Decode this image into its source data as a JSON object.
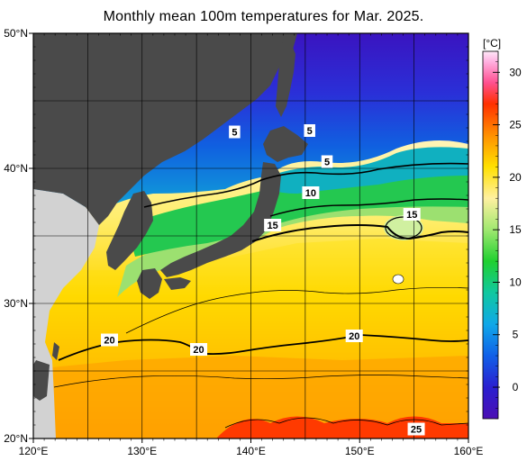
{
  "title": "Monthly mean 100m temperatures for Mar. 2025.",
  "colorbar": {
    "unit": "[°C]",
    "ticks": [
      "30",
      "25",
      "20",
      "15",
      "10",
      "5",
      "0"
    ],
    "tick_values": [
      30,
      25,
      20,
      15,
      10,
      5,
      0
    ],
    "range": [
      -3,
      32
    ],
    "stops": [
      {
        "v": -3,
        "c": "#4b0fb4"
      },
      {
        "v": 0,
        "c": "#2a1fd0"
      },
      {
        "v": 3,
        "c": "#1060e8"
      },
      {
        "v": 6,
        "c": "#10a8e8"
      },
      {
        "v": 9,
        "c": "#10c8a0"
      },
      {
        "v": 12,
        "c": "#20d030"
      },
      {
        "v": 15,
        "c": "#a0e870"
      },
      {
        "v": 18,
        "c": "#fff0a0"
      },
      {
        "v": 21,
        "c": "#ffe000"
      },
      {
        "v": 24,
        "c": "#ff9000"
      },
      {
        "v": 27,
        "c": "#ff3000"
      },
      {
        "v": 29,
        "c": "#ff5090"
      },
      {
        "v": 31,
        "c": "#ffb0e0"
      },
      {
        "v": 32,
        "c": "#ffe8f8"
      }
    ]
  },
  "axes": {
    "lat_labels": [
      "50°N",
      "40°N",
      "30°N",
      "20°N"
    ],
    "lat_values": [
      50,
      40,
      30,
      20
    ],
    "lon_labels": [
      "120°E",
      "130°E",
      "140°E",
      "150°E",
      "160°E"
    ],
    "lon_values": [
      120,
      130,
      140,
      150,
      160
    ],
    "lon_range": [
      120,
      160
    ],
    "lat_range": [
      20,
      50
    ],
    "grid_step": 5
  },
  "contour_labels": [
    {
      "text": "5",
      "lon": 138.5,
      "lat": 42.7
    },
    {
      "text": "5",
      "lon": 145.4,
      "lat": 42.8
    },
    {
      "text": "5",
      "lon": 147.0,
      "lat": 40.5
    },
    {
      "text": "10",
      "lon": 145.5,
      "lat": 38.2
    },
    {
      "text": "15",
      "lon": 142.0,
      "lat": 35.8
    },
    {
      "text": "15",
      "lon": 154.8,
      "lat": 36.6
    },
    {
      "text": "20",
      "lon": 127.0,
      "lat": 27.3
    },
    {
      "text": "20",
      "lon": 135.2,
      "lat": 26.6
    },
    {
      "text": "20",
      "lon": 149.5,
      "lat": 27.6
    },
    {
      "text": "25",
      "lon": 155.2,
      "lat": 20.7
    }
  ],
  "colors": {
    "land": "#4a4a4a",
    "land_outside": "#d2d2d2",
    "ocean_default": "#ffd000",
    "grid": "#000000"
  }
}
